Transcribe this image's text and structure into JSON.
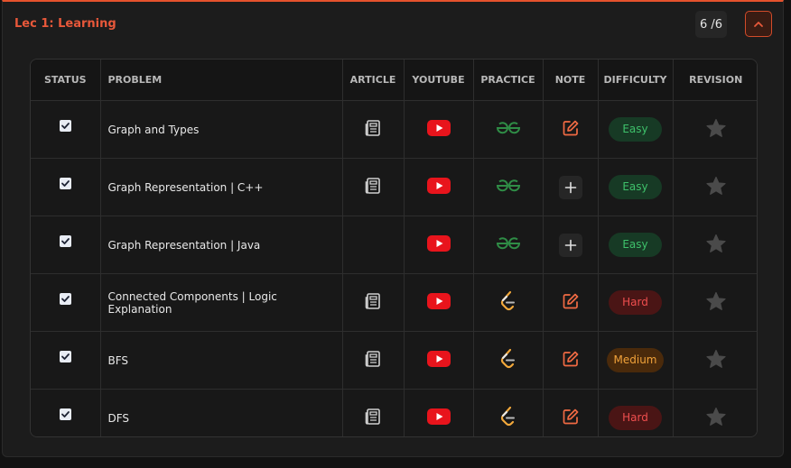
{
  "lecture": {
    "title": "Lec 1: Learning",
    "progress": "6 /6"
  },
  "columns": {
    "status": "STATUS",
    "problem": "PROBLEM",
    "article": "ARTICLE",
    "youtube": "YOUTUBE",
    "practice": "PRACTICE",
    "note": "NOTE",
    "difficulty": "DIFFICULTY",
    "revision": "REVISION"
  },
  "colors": {
    "accent": "#e5522d",
    "youtube": "#e8141c",
    "gfg": "#2f8d46",
    "star": "#4a4a4a"
  },
  "problems": [
    {
      "name": "Graph and Types",
      "checked": true,
      "article": "article-icon",
      "practice": "gfg-icon",
      "note": "edit",
      "difficulty": "Easy",
      "level": "easy"
    },
    {
      "name": "Graph Representation | C++",
      "checked": true,
      "article": "article-icon",
      "practice": "gfg-icon",
      "note": "add",
      "difficulty": "Easy",
      "level": "easy"
    },
    {
      "name": "Graph Representation | Java",
      "checked": true,
      "article": "",
      "practice": "gfg-icon",
      "note": "add",
      "difficulty": "Easy",
      "level": "easy"
    },
    {
      "name": "Connected Components | Logic Explanation",
      "checked": true,
      "article": "article-icon",
      "practice": "leetcode-icon",
      "note": "edit",
      "difficulty": "Hard",
      "level": "hard"
    },
    {
      "name": "BFS",
      "checked": true,
      "article": "article-icon",
      "practice": "leetcode-icon",
      "note": "edit",
      "difficulty": "Medium",
      "level": "medium"
    },
    {
      "name": "DFS",
      "checked": true,
      "article": "article-icon",
      "practice": "leetcode-icon",
      "note": "edit",
      "difficulty": "Hard",
      "level": "hard"
    }
  ]
}
